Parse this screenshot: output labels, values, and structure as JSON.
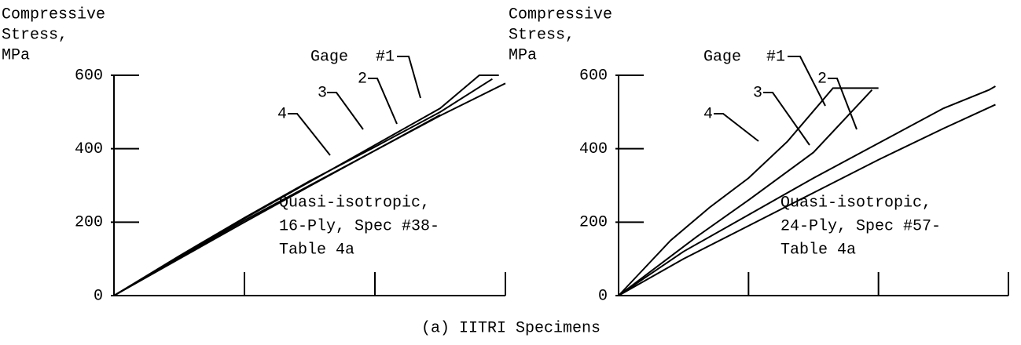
{
  "caption": "(a) IITRI Specimens",
  "chart_data": [
    {
      "type": "line",
      "ylabel": [
        "Compressive",
        "Stress,",
        "MPa"
      ],
      "annotation": [
        "Quasi-isotropic,",
        "16-Ply, Spec #38-",
        "Table 4a"
      ],
      "legend_title": "Gage",
      "xlim": [
        0,
        3
      ],
      "xticks": [
        0,
        1,
        2,
        3
      ],
      "ylim": [
        0,
        600
      ],
      "yticks": [
        0,
        200,
        400,
        600
      ],
      "series": [
        {
          "name": "#1",
          "color": "#000000",
          "x": [
            0,
            0.5,
            1,
            1.5,
            2,
            2.5,
            2.8,
            2.95
          ],
          "values": [
            0,
            105,
            210,
            310,
            410,
            510,
            600,
            600
          ]
        },
        {
          "name": "2",
          "color": "#000000",
          "x": [
            0,
            0.5,
            1,
            1.5,
            2,
            2.5,
            3
          ],
          "values": [
            0,
            103,
            205,
            300,
            395,
            490,
            578
          ]
        },
        {
          "name": "3",
          "color": "#000000",
          "x": [
            0,
            0.5,
            1,
            1.5,
            2,
            2.5,
            2.9
          ],
          "values": [
            0,
            108,
            212,
            312,
            405,
            500,
            590
          ]
        },
        {
          "name": "4",
          "color": "#000000",
          "x": [
            0,
            0.5,
            1,
            1.5,
            2,
            2.5
          ],
          "values": [
            0,
            100,
            200,
            298,
            395,
            492
          ]
        }
      ]
    },
    {
      "type": "line",
      "ylabel": [
        "Compressive",
        "Stress,",
        "MPa"
      ],
      "annotation": [
        "Quasi-isotropic,",
        "24-Ply, Spec #57-",
        "Table 4a"
      ],
      "legend_title": "Gage",
      "xlim": [
        0,
        3
      ],
      "xticks": [
        0,
        1,
        2,
        3
      ],
      "ylim": [
        0,
        600
      ],
      "yticks": [
        0,
        200,
        400,
        600
      ],
      "series": [
        {
          "name": "#1",
          "color": "#000000",
          "x": [
            0,
            0.2,
            0.4,
            0.7,
            1,
            1.3,
            1.65,
            2.0
          ],
          "values": [
            0,
            75,
            150,
            240,
            320,
            420,
            565,
            565
          ]
        },
        {
          "name": "2",
          "color": "#000000",
          "x": [
            0,
            0.3,
            0.6,
            1,
            1.5,
            1.95
          ],
          "values": [
            0,
            80,
            160,
            260,
            390,
            560
          ]
        },
        {
          "name": "3",
          "color": "#000000",
          "x": [
            0,
            0.5,
            1,
            1.5,
            2,
            2.5,
            2.85,
            2.9
          ],
          "values": [
            0,
            120,
            220,
            320,
            415,
            510,
            560,
            570
          ]
        },
        {
          "name": "4",
          "color": "#000000",
          "x": [
            0,
            0.5,
            1,
            1.5,
            2,
            2.5,
            2.9
          ],
          "values": [
            0,
            100,
            190,
            280,
            370,
            455,
            520
          ]
        }
      ]
    }
  ]
}
